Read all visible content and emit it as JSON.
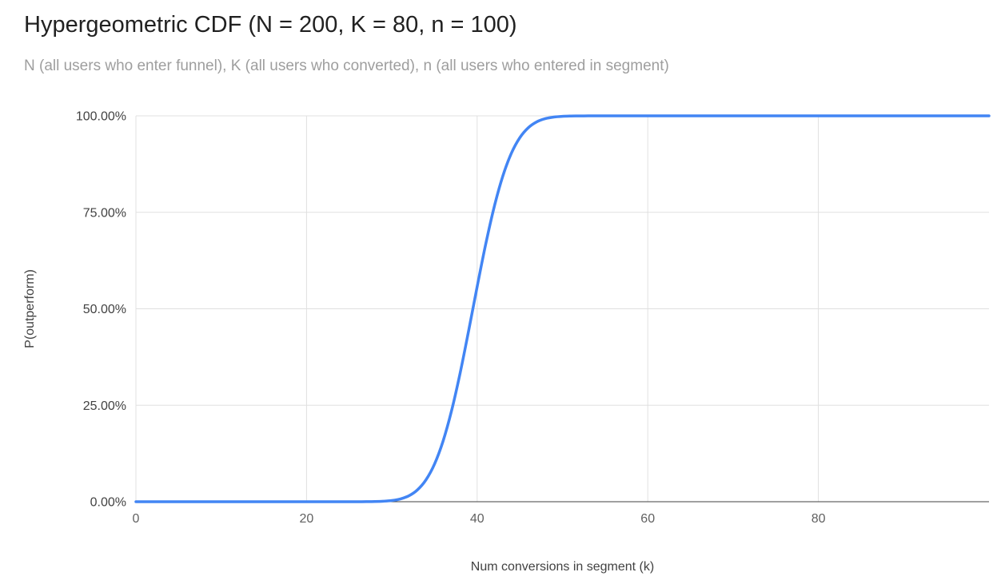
{
  "chart": {
    "colors": {
      "line": "#4285f4",
      "grid": "#e0e0e0",
      "baseline": "#424242",
      "title": "#212121",
      "subtitle": "#9e9e9e",
      "x_tick": "#616161",
      "y_tick": "#424242",
      "axis_title": "#424242",
      "background": "#ffffff"
    }
  },
  "chart_data": {
    "type": "line",
    "title": "Hypergeometric CDF (N = 200, K = 80, n = 100)",
    "subtitle": "N (all users who enter funnel), K (all users who converted), n (all users who entered in segment)",
    "xlabel": "Num conversions in segment (k)",
    "ylabel": "P(outperform)",
    "xlim": [
      0,
      100
    ],
    "ylim": [
      0,
      1
    ],
    "grid": true,
    "legend_position": "none",
    "x_ticks": [
      0,
      20,
      40,
      60,
      80
    ],
    "x_tick_labels": [
      "0",
      "20",
      "40",
      "60",
      "80"
    ],
    "y_ticks": [
      0,
      0.25,
      0.5,
      0.75,
      1
    ],
    "y_tick_labels": [
      "0.00%",
      "25.00%",
      "50.00%",
      "75.00%",
      "100.00%"
    ],
    "series": [
      {
        "name": "P(outperform)",
        "x": [
          0,
          1,
          2,
          3,
          4,
          5,
          6,
          7,
          8,
          9,
          10,
          11,
          12,
          13,
          14,
          15,
          16,
          17,
          18,
          19,
          20,
          21,
          22,
          23,
          24,
          25,
          26,
          27,
          28,
          29,
          30,
          31,
          32,
          33,
          34,
          35,
          36,
          37,
          38,
          39,
          40,
          41,
          42,
          43,
          44,
          45,
          46,
          47,
          48,
          49,
          50,
          51,
          52,
          53,
          54,
          55,
          56,
          57,
          58,
          59,
          60,
          61,
          62,
          63,
          64,
          65,
          66,
          67,
          68,
          69,
          70,
          71,
          72,
          73,
          74,
          75,
          76,
          77,
          78,
          79,
          80,
          81,
          82,
          83,
          84,
          85,
          86,
          87,
          88,
          89,
          90,
          91,
          92,
          93,
          94,
          95,
          96,
          97,
          98,
          99,
          100
        ],
        "y": [
          0,
          0,
          0,
          0,
          0,
          0,
          0,
          0,
          0,
          0,
          0,
          0,
          0,
          0,
          0,
          0,
          0,
          0,
          0,
          0,
          0,
          0,
          0,
          0,
          0,
          1e-05,
          5e-05,
          0.0002,
          0.0005,
          0.0013,
          0.0031,
          0.0072,
          0.0154,
          0.0307,
          0.0567,
          0.0975,
          0.1567,
          0.2358,
          0.3329,
          0.4428,
          0.5572,
          0.6671,
          0.7642,
          0.8433,
          0.9025,
          0.9433,
          0.9693,
          0.9846,
          0.9928,
          0.9969,
          0.9988,
          0.9995,
          0.9998,
          0.9999,
          1,
          1,
          1,
          1,
          1,
          1,
          1,
          1,
          1,
          1,
          1,
          1,
          1,
          1,
          1,
          1,
          1,
          1,
          1,
          1,
          1,
          1,
          1,
          1,
          1,
          1,
          1,
          1,
          1,
          1,
          1,
          1,
          1,
          1,
          1,
          1,
          1,
          1,
          1,
          1,
          1,
          1,
          1,
          1,
          1,
          1,
          1
        ]
      }
    ]
  }
}
